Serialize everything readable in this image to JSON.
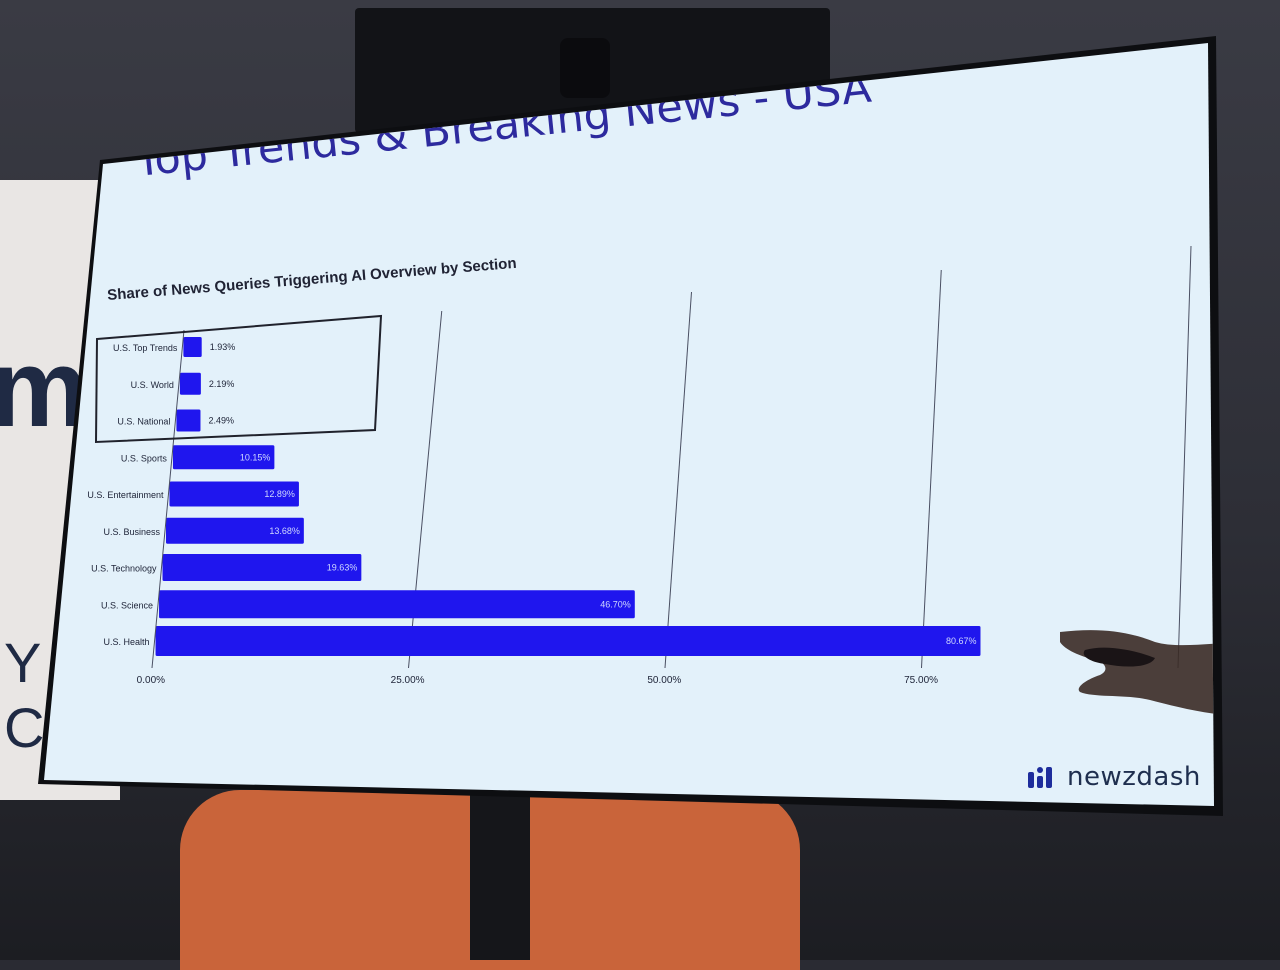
{
  "slide": {
    "title": "Top Trends & Breaking News - USA",
    "logo_text": "newzdash"
  },
  "chart_data": {
    "type": "bar",
    "orientation": "horizontal",
    "title": "Share of News Queries Triggering AI Overview by Section",
    "categories": [
      "U.S. Top Trends",
      "U.S. World",
      "U.S. National",
      "U.S. Sports",
      "U.S. Entertainment",
      "U.S. Business",
      "U.S. Technology",
      "U.S. Science",
      "U.S. Health"
    ],
    "values": [
      1.93,
      2.19,
      2.49,
      10.15,
      12.89,
      13.68,
      19.63,
      46.7,
      80.67
    ],
    "value_labels": [
      "1.93%",
      "2.19%",
      "2.49%",
      "10.15%",
      "12.89%",
      "13.68%",
      "19.63%",
      "46.70%",
      "80.67%"
    ],
    "xlim": [
      0,
      100
    ],
    "xticks": [
      0,
      25,
      50,
      75
    ],
    "xtick_labels": [
      "0.00%",
      "25.00%",
      "50.00%",
      "75.00%"
    ],
    "grid": true,
    "highlight_box": [
      "U.S. Top Trends",
      "U.S. World",
      "U.S. National"
    ],
    "bar_color": "#1f16ee",
    "title_color": "#2d2a9e"
  }
}
